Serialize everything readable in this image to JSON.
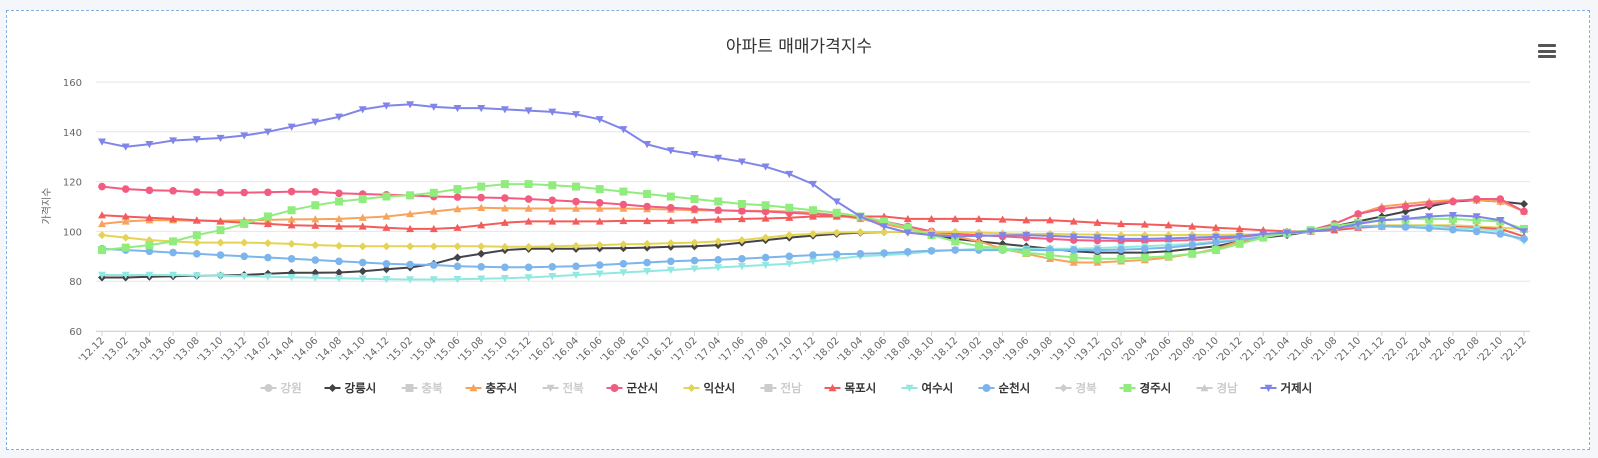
{
  "chart_data": {
    "type": "line",
    "title": "아파트 매매가격지수",
    "xlabel": "",
    "ylabel": "가격지수",
    "ylim": [
      60,
      160
    ],
    "yticks": [
      60,
      80,
      100,
      120,
      140,
      160
    ],
    "grid": true,
    "legend_placement": "bottom",
    "x_tick_labels": [
      "'12.12",
      "'13.02",
      "'13.04",
      "'13.06",
      "'13.08",
      "'13.10",
      "'13.12",
      "'14.02",
      "'14.04",
      "'14.06",
      "'14.08",
      "'14.10",
      "'14.12",
      "'15.02",
      "'15.04",
      "'15.06",
      "'15.08",
      "'15.10",
      "'15.12",
      "'16.02",
      "'16.04",
      "'16.06",
      "'16.08",
      "'16.10",
      "'16.12",
      "'17.02",
      "'17.04",
      "'17.06",
      "'17.08",
      "'17.10",
      "'17.12",
      "'18.02",
      "'18.04",
      "'18.06",
      "'18.08",
      "'18.10",
      "'18.12",
      "'19.02",
      "'19.04",
      "'19.06",
      "'19.08",
      "'19.10",
      "'19.12",
      "'20.02",
      "'20.04",
      "'20.06",
      "'20.08",
      "'20.10",
      "'20.12",
      "'21.02",
      "'21.04",
      "'21.06",
      "'21.08",
      "'21.10",
      "'21.12",
      "'22.02",
      "'22.04",
      "'22.06",
      "'22.08",
      "'22.10",
      "'22.12"
    ],
    "series": [
      {
        "name": "강원",
        "visible": false,
        "color": "#cccccc",
        "marker": "circle",
        "values": []
      },
      {
        "name": "강릉시",
        "visible": true,
        "color": "#434348",
        "marker": "diamond",
        "values": [
          81.5,
          81.5,
          81.8,
          82,
          82.2,
          82.3,
          82.5,
          83,
          83.4,
          83.4,
          83.5,
          84,
          84.8,
          85.5,
          87,
          89.5,
          91,
          92.5,
          93,
          93,
          93,
          93.2,
          93.3,
          93.5,
          93.8,
          94,
          94.5,
          95.5,
          96.5,
          97.5,
          98.3,
          99,
          99.5,
          99.7,
          99.8,
          98.5,
          97,
          96,
          95,
          94,
          93,
          92,
          91.5,
          91.5,
          91.5,
          92,
          93,
          94,
          96,
          97.5,
          98.5,
          100,
          102,
          104,
          106,
          108,
          110,
          112,
          112.5,
          112,
          111
        ]
      },
      {
        "name": "충북",
        "visible": false,
        "color": "#cccccc",
        "marker": "square",
        "values": []
      },
      {
        "name": "충주시",
        "visible": true,
        "color": "#f7a35c",
        "marker": "triangle",
        "values": [
          103,
          104,
          104.5,
          104.5,
          104.3,
          104.3,
          104.5,
          104.6,
          104.8,
          104.9,
          105,
          105.5,
          106,
          107,
          108,
          109,
          109.5,
          109.3,
          109.2,
          109.2,
          109.2,
          109.2,
          109.2,
          109,
          108.8,
          108.5,
          108.4,
          108.3,
          108.2,
          108,
          107.5,
          106.5,
          105,
          103,
          101,
          99.5,
          98,
          96,
          93,
          91,
          89,
          87.5,
          87.5,
          88,
          88.5,
          89.5,
          91,
          93,
          96,
          98,
          99.5,
          100,
          103,
          107,
          110,
          111,
          112,
          112.5,
          112.5,
          112,
          108
        ]
      },
      {
        "name": "전북",
        "visible": false,
        "color": "#cccccc",
        "marker": "triangle-down",
        "values": []
      },
      {
        "name": "군산시",
        "visible": true,
        "color": "#f15c80",
        "marker": "circle",
        "values": [
          118,
          117,
          116.5,
          116.3,
          115.8,
          115.6,
          115.6,
          115.7,
          116,
          115.9,
          115.3,
          115,
          114.7,
          114.4,
          114,
          113.8,
          113.6,
          113.4,
          113,
          112.5,
          112,
          111.5,
          110.8,
          110,
          109.5,
          109,
          108.5,
          108.2,
          108,
          107.5,
          107,
          106.5,
          105.5,
          104,
          102,
          100,
          99,
          98.5,
          98,
          97.5,
          97,
          96.5,
          96.3,
          96.2,
          96.2,
          96.3,
          96.5,
          97,
          97.5,
          98.5,
          99.5,
          100.5,
          103,
          107,
          109,
          110,
          111,
          112,
          113,
          113,
          108
        ]
      },
      {
        "name": "익산시",
        "visible": true,
        "color": "#e4d354",
        "marker": "diamond",
        "values": [
          98.5,
          97.5,
          96.5,
          96,
          95.5,
          95.5,
          95.5,
          95.3,
          95,
          94.5,
          94.2,
          94,
          94,
          94,
          94,
          94,
          94,
          93.8,
          93.8,
          94,
          94.2,
          94.5,
          94.8,
          95,
          95.3,
          95.5,
          96,
          96.5,
          97.5,
          98.5,
          99,
          99.5,
          99.7,
          99.7,
          99.8,
          99.8,
          99.8,
          99.5,
          99.2,
          99,
          99,
          98.8,
          98.7,
          98.5,
          98.5,
          98.5,
          98.6,
          98.6,
          98.7,
          98.8,
          99,
          100,
          101,
          102,
          102.5,
          102.5,
          102.5,
          102.5,
          102,
          101.5,
          101
        ]
      },
      {
        "name": "전남",
        "visible": false,
        "color": "#cccccc",
        "marker": "square",
        "values": []
      },
      {
        "name": "목포시",
        "visible": true,
        "color": "#f45b5b",
        "marker": "triangle",
        "values": [
          106.5,
          106,
          105.5,
          105,
          104.5,
          104,
          103.5,
          103,
          102.5,
          102.3,
          102,
          102,
          101.5,
          101,
          101,
          101.5,
          102.5,
          103.5,
          104,
          104,
          104,
          104,
          104.2,
          104.2,
          104.3,
          104.5,
          104.8,
          105,
          105.2,
          105.5,
          106,
          106,
          106,
          106,
          105,
          105,
          105,
          105,
          104.8,
          104.5,
          104.5,
          104,
          103.5,
          103,
          102.8,
          102.5,
          102,
          101.5,
          101,
          100.5,
          100,
          100,
          100.5,
          101.5,
          102,
          102.2,
          102,
          101.8,
          101.5,
          101,
          98
        ]
      },
      {
        "name": "여수시",
        "visible": true,
        "color": "#91e8e1",
        "marker": "triangle-down",
        "values": [
          82.5,
          82.5,
          82.5,
          82.5,
          82.3,
          82.2,
          82,
          81.8,
          81.6,
          81.4,
          81.2,
          81,
          80.8,
          80.7,
          80.7,
          80.8,
          81,
          81.2,
          81.5,
          82,
          82.5,
          83,
          83.5,
          84,
          84.5,
          85,
          85.5,
          86,
          86.5,
          87,
          88,
          89,
          90,
          90.5,
          91,
          92,
          92.5,
          93,
          93,
          93,
          93,
          93,
          93.3,
          93.7,
          94,
          94.5,
          95,
          96,
          97,
          98,
          99,
          100,
          101.5,
          102,
          102,
          102,
          102,
          101.5,
          101,
          100,
          96
        ]
      },
      {
        "name": "순천시",
        "visible": true,
        "color": "#7cb5ec",
        "marker": "circle",
        "values": [
          93,
          92.5,
          92,
          91.5,
          91,
          90.5,
          90,
          89.5,
          89,
          88.5,
          88,
          87.5,
          87,
          86.7,
          86.5,
          86,
          85.8,
          85.6,
          85.6,
          85.8,
          86,
          86.5,
          87,
          87.5,
          88,
          88.3,
          88.6,
          89,
          89.5,
          90,
          90.5,
          90.8,
          91,
          91.3,
          91.8,
          92.2,
          92.5,
          92.5,
          92.5,
          92.5,
          92.5,
          92.5,
          92.5,
          92.7,
          93,
          93.5,
          94.5,
          95.5,
          96.5,
          97.8,
          99,
          100.5,
          102,
          102,
          102,
          101.8,
          101.3,
          100.7,
          100,
          99,
          97
        ]
      },
      {
        "name": "경북",
        "visible": false,
        "color": "#cccccc",
        "marker": "diamond",
        "values": []
      },
      {
        "name": "경주시",
        "visible": true,
        "color": "#90ed7d",
        "marker": "square",
        "values": [
          92.5,
          93.5,
          94.5,
          96,
          98.5,
          100.5,
          103,
          106,
          108.5,
          110.5,
          112,
          113,
          114,
          114.5,
          115.5,
          117,
          118,
          119,
          119,
          118.5,
          118,
          117,
          116,
          115,
          114,
          113,
          112,
          111,
          110.5,
          109.5,
          108.5,
          107.5,
          106,
          104,
          101.5,
          98.5,
          96,
          94,
          93,
          91.5,
          90.5,
          89.5,
          89,
          89,
          89.5,
          90,
          91,
          92.5,
          95,
          97.5,
          99.5,
          100.5,
          102,
          103.5,
          104.5,
          105,
          105,
          105,
          104.5,
          104,
          101
        ]
      },
      {
        "name": "경남",
        "visible": false,
        "color": "#cccccc",
        "marker": "triangle",
        "values": []
      },
      {
        "name": "거제시",
        "visible": true,
        "color": "#8085e9",
        "marker": "triangle-down",
        "values": [
          136,
          134,
          135,
          136.5,
          137,
          137.5,
          138.5,
          140,
          142,
          144,
          146,
          149,
          150.5,
          151,
          150,
          149.5,
          149.5,
          149,
          148.5,
          148,
          147,
          145,
          141,
          135,
          132.5,
          131,
          129.5,
          128,
          126,
          123,
          119,
          112,
          106,
          102,
          99.5,
          98.5,
          98,
          98.2,
          98.4,
          98.5,
          98.2,
          97.8,
          97.5,
          97,
          97,
          97.2,
          97.5,
          97.8,
          98,
          99,
          99.5,
          100,
          101,
          103,
          104.5,
          105,
          106,
          106.5,
          106,
          104.5,
          100
        ]
      }
    ]
  }
}
